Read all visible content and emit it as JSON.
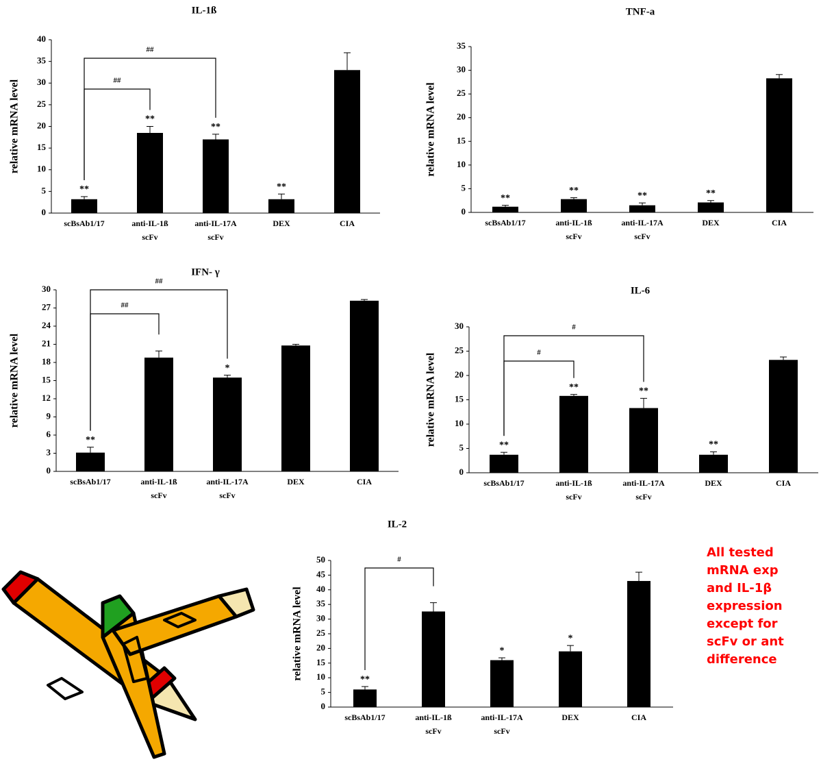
{
  "chart_data": [
    {
      "type": "bar",
      "title": "IL-1ß",
      "y_label": "relative mRNA level",
      "color": "#000000",
      "categories": [
        [
          "scBsAb1/17"
        ],
        [
          "anti-IL-1ß",
          "scFv"
        ],
        [
          "anti-IL-17A",
          "scFv"
        ],
        [
          "DEX"
        ],
        [
          "CIA"
        ]
      ],
      "values": [
        3.2,
        18.5,
        17,
        3.2,
        33
      ],
      "errors": [
        0.6,
        1.5,
        1.2,
        1.2,
        4
      ],
      "annotations": [
        "**",
        "**",
        "**",
        "**",
        null
      ],
      "brackets": [
        {
          "label": "##",
          "between": [
            0,
            1
          ]
        },
        {
          "label": "##",
          "between": [
            0,
            2
          ]
        }
      ],
      "ylim": [
        0,
        40
      ],
      "yticks": [
        0,
        5,
        10,
        15,
        20,
        25,
        30,
        35,
        40
      ]
    },
    {
      "type": "bar",
      "title": "TNF-a",
      "y_label": "relative mRNA level",
      "color": "#000000",
      "categories": [
        [
          "scBsAb1/17"
        ],
        [
          "anti-IL-1ß",
          "scFv"
        ],
        [
          "anti-IL-17A",
          "scFv"
        ],
        [
          "DEX"
        ],
        [
          "CIA"
        ]
      ],
      "values": [
        1.2,
        2.8,
        1.5,
        2.1,
        28.3
      ],
      "errors": [
        0.3,
        0.3,
        0.5,
        0.4,
        0.8
      ],
      "annotations": [
        "**",
        "**",
        "**",
        "**",
        null
      ],
      "brackets": [],
      "ylim": [
        0,
        35
      ],
      "yticks": [
        0,
        5,
        10,
        15,
        20,
        25,
        30,
        35
      ]
    },
    {
      "type": "bar",
      "title": "IFN- γ",
      "y_label": "relative mRNA level",
      "color": "#000000",
      "categories": [
        [
          "scBsAb1/17"
        ],
        [
          "anti-IL-1ß",
          "scFv"
        ],
        [
          "anti-IL-17A",
          "scFv"
        ],
        [
          "DEX"
        ],
        [
          "CIA"
        ]
      ],
      "values": [
        3.1,
        18.8,
        15.5,
        20.8,
        28.2
      ],
      "errors": [
        0.9,
        1.1,
        0.4,
        0.2,
        0.2
      ],
      "annotations": [
        "**",
        null,
        "*",
        null,
        null
      ],
      "brackets": [
        {
          "label": "##",
          "between": [
            0,
            1
          ]
        },
        {
          "label": "##",
          "between": [
            0,
            2
          ]
        }
      ],
      "ylim": [
        0,
        30
      ],
      "yticks": [
        0,
        3,
        6,
        9,
        12,
        15,
        18,
        21,
        24,
        27,
        30
      ]
    },
    {
      "type": "bar",
      "title": "IL-6",
      "y_label": "relative mRNA level",
      "color": "#000000",
      "categories": [
        [
          "scBsAb1/17"
        ],
        [
          "anti-IL-1ß",
          "scFv"
        ],
        [
          "anti-IL-17A",
          "scFv"
        ],
        [
          "DEX"
        ],
        [
          "CIA"
        ]
      ],
      "values": [
        3.7,
        15.8,
        13.3,
        3.7,
        23.2
      ],
      "errors": [
        0.5,
        0.3,
        2,
        0.6,
        0.6
      ],
      "annotations": [
        "**",
        "**",
        "**",
        "**",
        null
      ],
      "brackets": [
        {
          "label": "#",
          "between": [
            0,
            1
          ]
        },
        {
          "label": "#",
          "between": [
            0,
            2
          ]
        }
      ],
      "ylim": [
        0,
        30
      ],
      "yticks": [
        0,
        5,
        10,
        15,
        20,
        25,
        30
      ]
    },
    {
      "type": "bar",
      "title": "IL-2",
      "y_label": "relative mRNA level",
      "color": "#000000",
      "categories": [
        [
          "scBsAb1/17"
        ],
        [
          "anti-IL-1ß",
          "scFv"
        ],
        [
          "anti-IL-17A",
          "scFv"
        ],
        [
          "DEX"
        ],
        [
          "CIA"
        ]
      ],
      "values": [
        6,
        32.6,
        16,
        19,
        43
      ],
      "errors": [
        1,
        3,
        0.8,
        2,
        3
      ],
      "annotations": [
        "**",
        null,
        "*",
        "*",
        null
      ],
      "brackets": [
        {
          "label": "#",
          "between": [
            0,
            1
          ]
        }
      ],
      "ylim": [
        0,
        50
      ],
      "yticks": [
        0,
        5,
        10,
        15,
        20,
        25,
        30,
        35,
        40,
        45,
        50
      ]
    }
  ],
  "note": {
    "lines": [
      "All tested",
      "mRNA exp",
      "and IL-1β",
      "expression",
      "except for",
      "scFv or ant",
      "difference"
    ]
  }
}
